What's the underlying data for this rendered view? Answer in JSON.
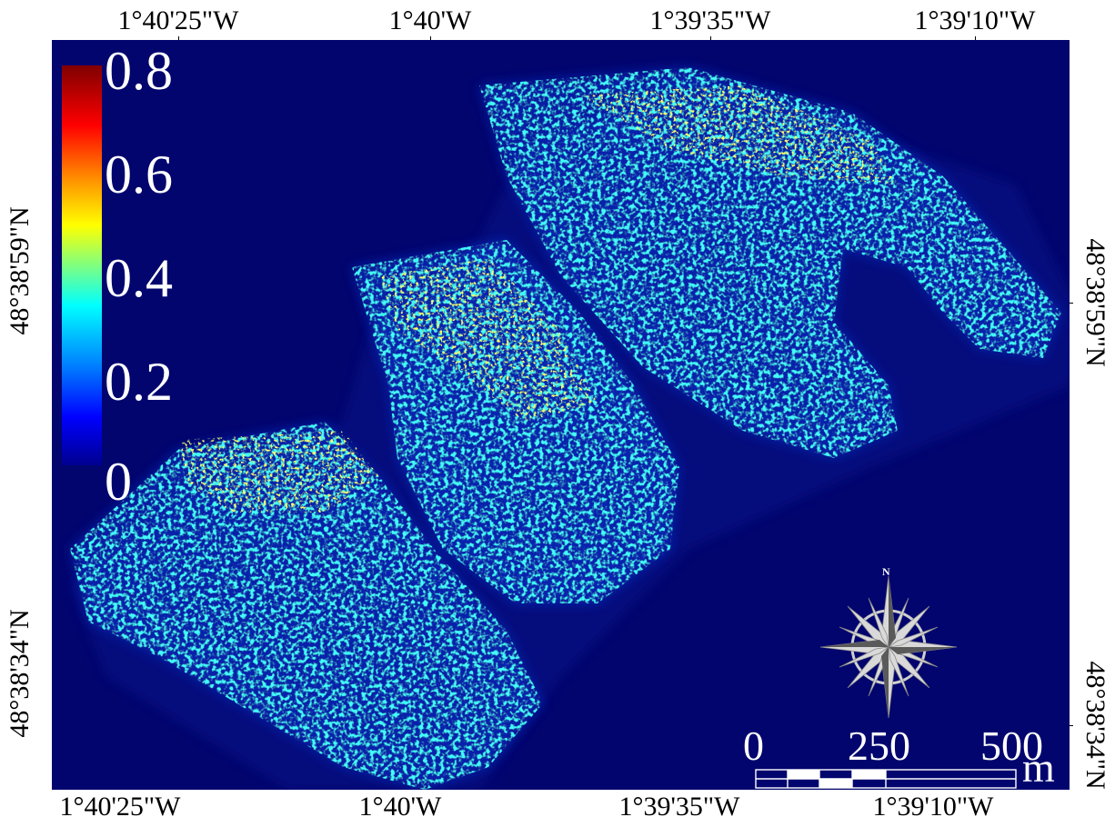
{
  "longitude_labels": {
    "top": [
      "1°40'25\"W",
      "1°40'W",
      "1°39'35\"W",
      "1°39'10\"W"
    ],
    "bottom": [
      "1°40'25\"W",
      "1°40'W",
      "1°39'35\"W",
      "1°39'10\"W"
    ]
  },
  "latitude_labels": {
    "left": [
      "48°38'59\"N",
      "48°38'34\"N"
    ],
    "right": [
      "48°38'59\"N",
      "48°38'34\"N"
    ]
  },
  "legend": {
    "ticks": [
      "0.8",
      "0.6",
      "0.4",
      "0.2",
      "0"
    ],
    "range": [
      0,
      0.8
    ],
    "colormap": "jet"
  },
  "north_arrow": {
    "label": "N"
  },
  "scale_bar": {
    "ticks": [
      "0",
      "250",
      "500"
    ],
    "unit": "m"
  },
  "colors": {
    "background": "#02056e",
    "text_overlay": "#ffffff"
  }
}
